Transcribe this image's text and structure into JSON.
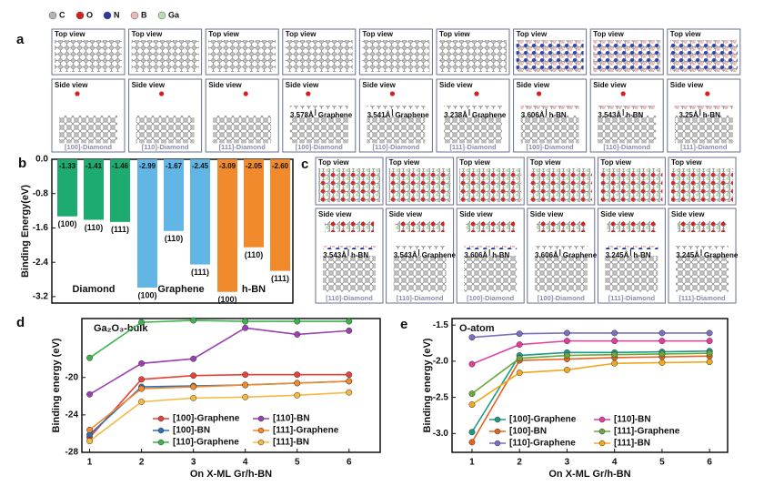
{
  "atom_legend": [
    {
      "label": "C",
      "color": "#b4b4b4"
    },
    {
      "label": "O",
      "color": "#d42020"
    },
    {
      "label": "N",
      "color": "#2b3aa3"
    },
    {
      "label": "B",
      "color": "#eab9b9"
    },
    {
      "label": "Ga",
      "color": "#b9dcae"
    }
  ],
  "panel_labels": [
    "a",
    "b",
    "c",
    "d",
    "e"
  ],
  "panel_a": {
    "top_label": "Top view",
    "side_label": "Side view",
    "columns": [
      {
        "caption": "[100]-Diamond"
      },
      {
        "caption": "[110]-Diamond"
      },
      {
        "caption": "[111]-Diamond"
      },
      {
        "caption": "[100]-Diamond",
        "distance": "3.578Å",
        "layer": "Graphene"
      },
      {
        "caption": "[110]-Diamond",
        "distance": "3.541Å",
        "layer": "Graphene"
      },
      {
        "caption": "[111]-Diamond",
        "distance": "3.238Å",
        "layer": "Graphene"
      },
      {
        "caption": "[100]-Diamond",
        "distance": "3.606Å",
        "layer": "h-BN"
      },
      {
        "caption": "[110]-Diamond",
        "distance": "3.543Å",
        "layer": "h-BN"
      },
      {
        "caption": "[111]-Diamond",
        "distance": "3.25Å",
        "layer": "h-BN"
      }
    ]
  },
  "panel_c": {
    "top_label": "Top view",
    "side_label": "Side view",
    "columns": [
      {
        "caption": "[110]-Diamond",
        "distance": "3.543Å",
        "layer": "h-BN"
      },
      {
        "caption": "[110]-Diamond",
        "distance": "3.543Å",
        "layer": "Graphene"
      },
      {
        "caption": "[100]-Diamond",
        "distance": "3.606Å",
        "layer": "h-BN"
      },
      {
        "caption": "[100]-Diamond",
        "distance": "3.606Å",
        "layer": "Graphene"
      },
      {
        "caption": "[111]-Diamond",
        "distance": "3.245Å",
        "layer": "h-BN"
      },
      {
        "caption": "[111]-Diamond",
        "distance": "3.245Å",
        "layer": "Graphene"
      }
    ]
  },
  "chart_data": [
    {
      "type": "bar",
      "y_label": "Binding Energy(eV)",
      "categories": [
        "(100)",
        "(110)",
        "(111)"
      ],
      "series": [
        {
          "name": "Diamond",
          "color": "#1dab6f",
          "values": [
            -1.33,
            -1.41,
            -1.46
          ]
        },
        {
          "name": "Graphene",
          "color": "#62b6e6",
          "values": [
            -2.99,
            -1.67,
            -2.45
          ]
        },
        {
          "name": "h-BN",
          "color": "#f08a2d",
          "values": [
            -3.09,
            -2.05,
            -2.6
          ],
          "value_labels": [
            "-3.09",
            "-2.05",
            "-2.60"
          ]
        }
      ],
      "ylim": [
        -3.35,
        0
      ],
      "yticks": [
        {
          "value": 0,
          "label": "0.0"
        },
        -0.8,
        -1.6,
        -2.4,
        -3.2
      ]
    },
    {
      "type": "line",
      "annotation": "Ga₂O₃-bulk",
      "x_label": "On X-ML Gr/h-BN",
      "y_label": "Binding energy (eV)",
      "x": [
        1,
        2,
        3,
        4,
        5,
        6
      ],
      "xlim": [
        0.85,
        6.6
      ],
      "xticks": [
        1,
        2,
        3,
        4,
        5,
        6
      ],
      "ylim": [
        -28,
        -13.7
      ],
      "yticks": [
        -28,
        -24,
        -20
      ],
      "series": [
        {
          "name": "[100]-Graphene",
          "color": "#e8413a",
          "values": [
            -26.4,
            -20.2,
            -19.8,
            -19.7,
            -19.7,
            -19.7
          ]
        },
        {
          "name": "[100]-BN",
          "color": "#2e6fb5",
          "values": [
            -26.1,
            -21.0,
            -20.9,
            -20.8,
            -20.6,
            -20.4
          ]
        },
        {
          "name": "[110]-Graphene",
          "color": "#3cb44b",
          "values": [
            -17.9,
            -14.1,
            -13.9,
            -14.0,
            -14.0,
            -14.0
          ]
        },
        {
          "name": "[110]-BN",
          "color": "#9b3fb5",
          "values": [
            -21.8,
            -18.5,
            -18.0,
            -14.7,
            -15.4,
            -15.0
          ]
        },
        {
          "name": "[111]-Graphene",
          "color": "#f08a2c",
          "values": [
            -25.6,
            -21.2,
            -21.0,
            -20.8,
            -20.6,
            -20.4
          ]
        },
        {
          "name": "[111]-BN",
          "color": "#f5b942",
          "values": [
            -26.8,
            -22.6,
            -22.2,
            -22.1,
            -21.9,
            -21.6
          ]
        }
      ]
    },
    {
      "type": "line",
      "annotation": "O-atom",
      "x_label": "On X-ML Gr/h-BN",
      "y_label": "Binding energy (eV)",
      "x": [
        1,
        2,
        3,
        4,
        5,
        6
      ],
      "xlim": [
        0.58,
        6.38
      ],
      "xticks": [
        1,
        2,
        3,
        4,
        5,
        6
      ],
      "ylim": [
        -3.26,
        -1.41
      ],
      "yticks": [
        {
          "value": -3.0,
          "label": "-3.0"
        },
        -2.5,
        {
          "value": -2.0,
          "label": "-2.0"
        },
        -1.5
      ],
      "series": [
        {
          "name": "[100]-Graphene",
          "color": "#1a9a8a",
          "values": [
            -2.98,
            -1.92,
            -1.88,
            -1.88,
            -1.87,
            -1.86
          ]
        },
        {
          "name": "[110]-BN",
          "color": "#e23ca0",
          "values": [
            -2.04,
            -1.77,
            -1.72,
            -1.72,
            -1.72,
            -1.72
          ]
        },
        {
          "name": "[100]-BN",
          "color": "#e8621f",
          "values": [
            -3.12,
            -1.99,
            -1.97,
            -1.95,
            -1.94,
            -1.93
          ]
        },
        {
          "name": "[111]-Graphene",
          "color": "#6aa83a",
          "values": [
            -2.45,
            -1.96,
            -1.92,
            -1.91,
            -1.9,
            -1.89
          ]
        },
        {
          "name": "[110]-Graphene",
          "color": "#7a6fc0",
          "values": [
            -1.67,
            -1.62,
            -1.61,
            -1.61,
            -1.61,
            -1.61
          ]
        },
        {
          "name": "[111]-BN",
          "color": "#f0a820",
          "values": [
            -2.6,
            -2.16,
            -2.12,
            -2.03,
            -2.02,
            -2.01
          ]
        }
      ]
    }
  ]
}
